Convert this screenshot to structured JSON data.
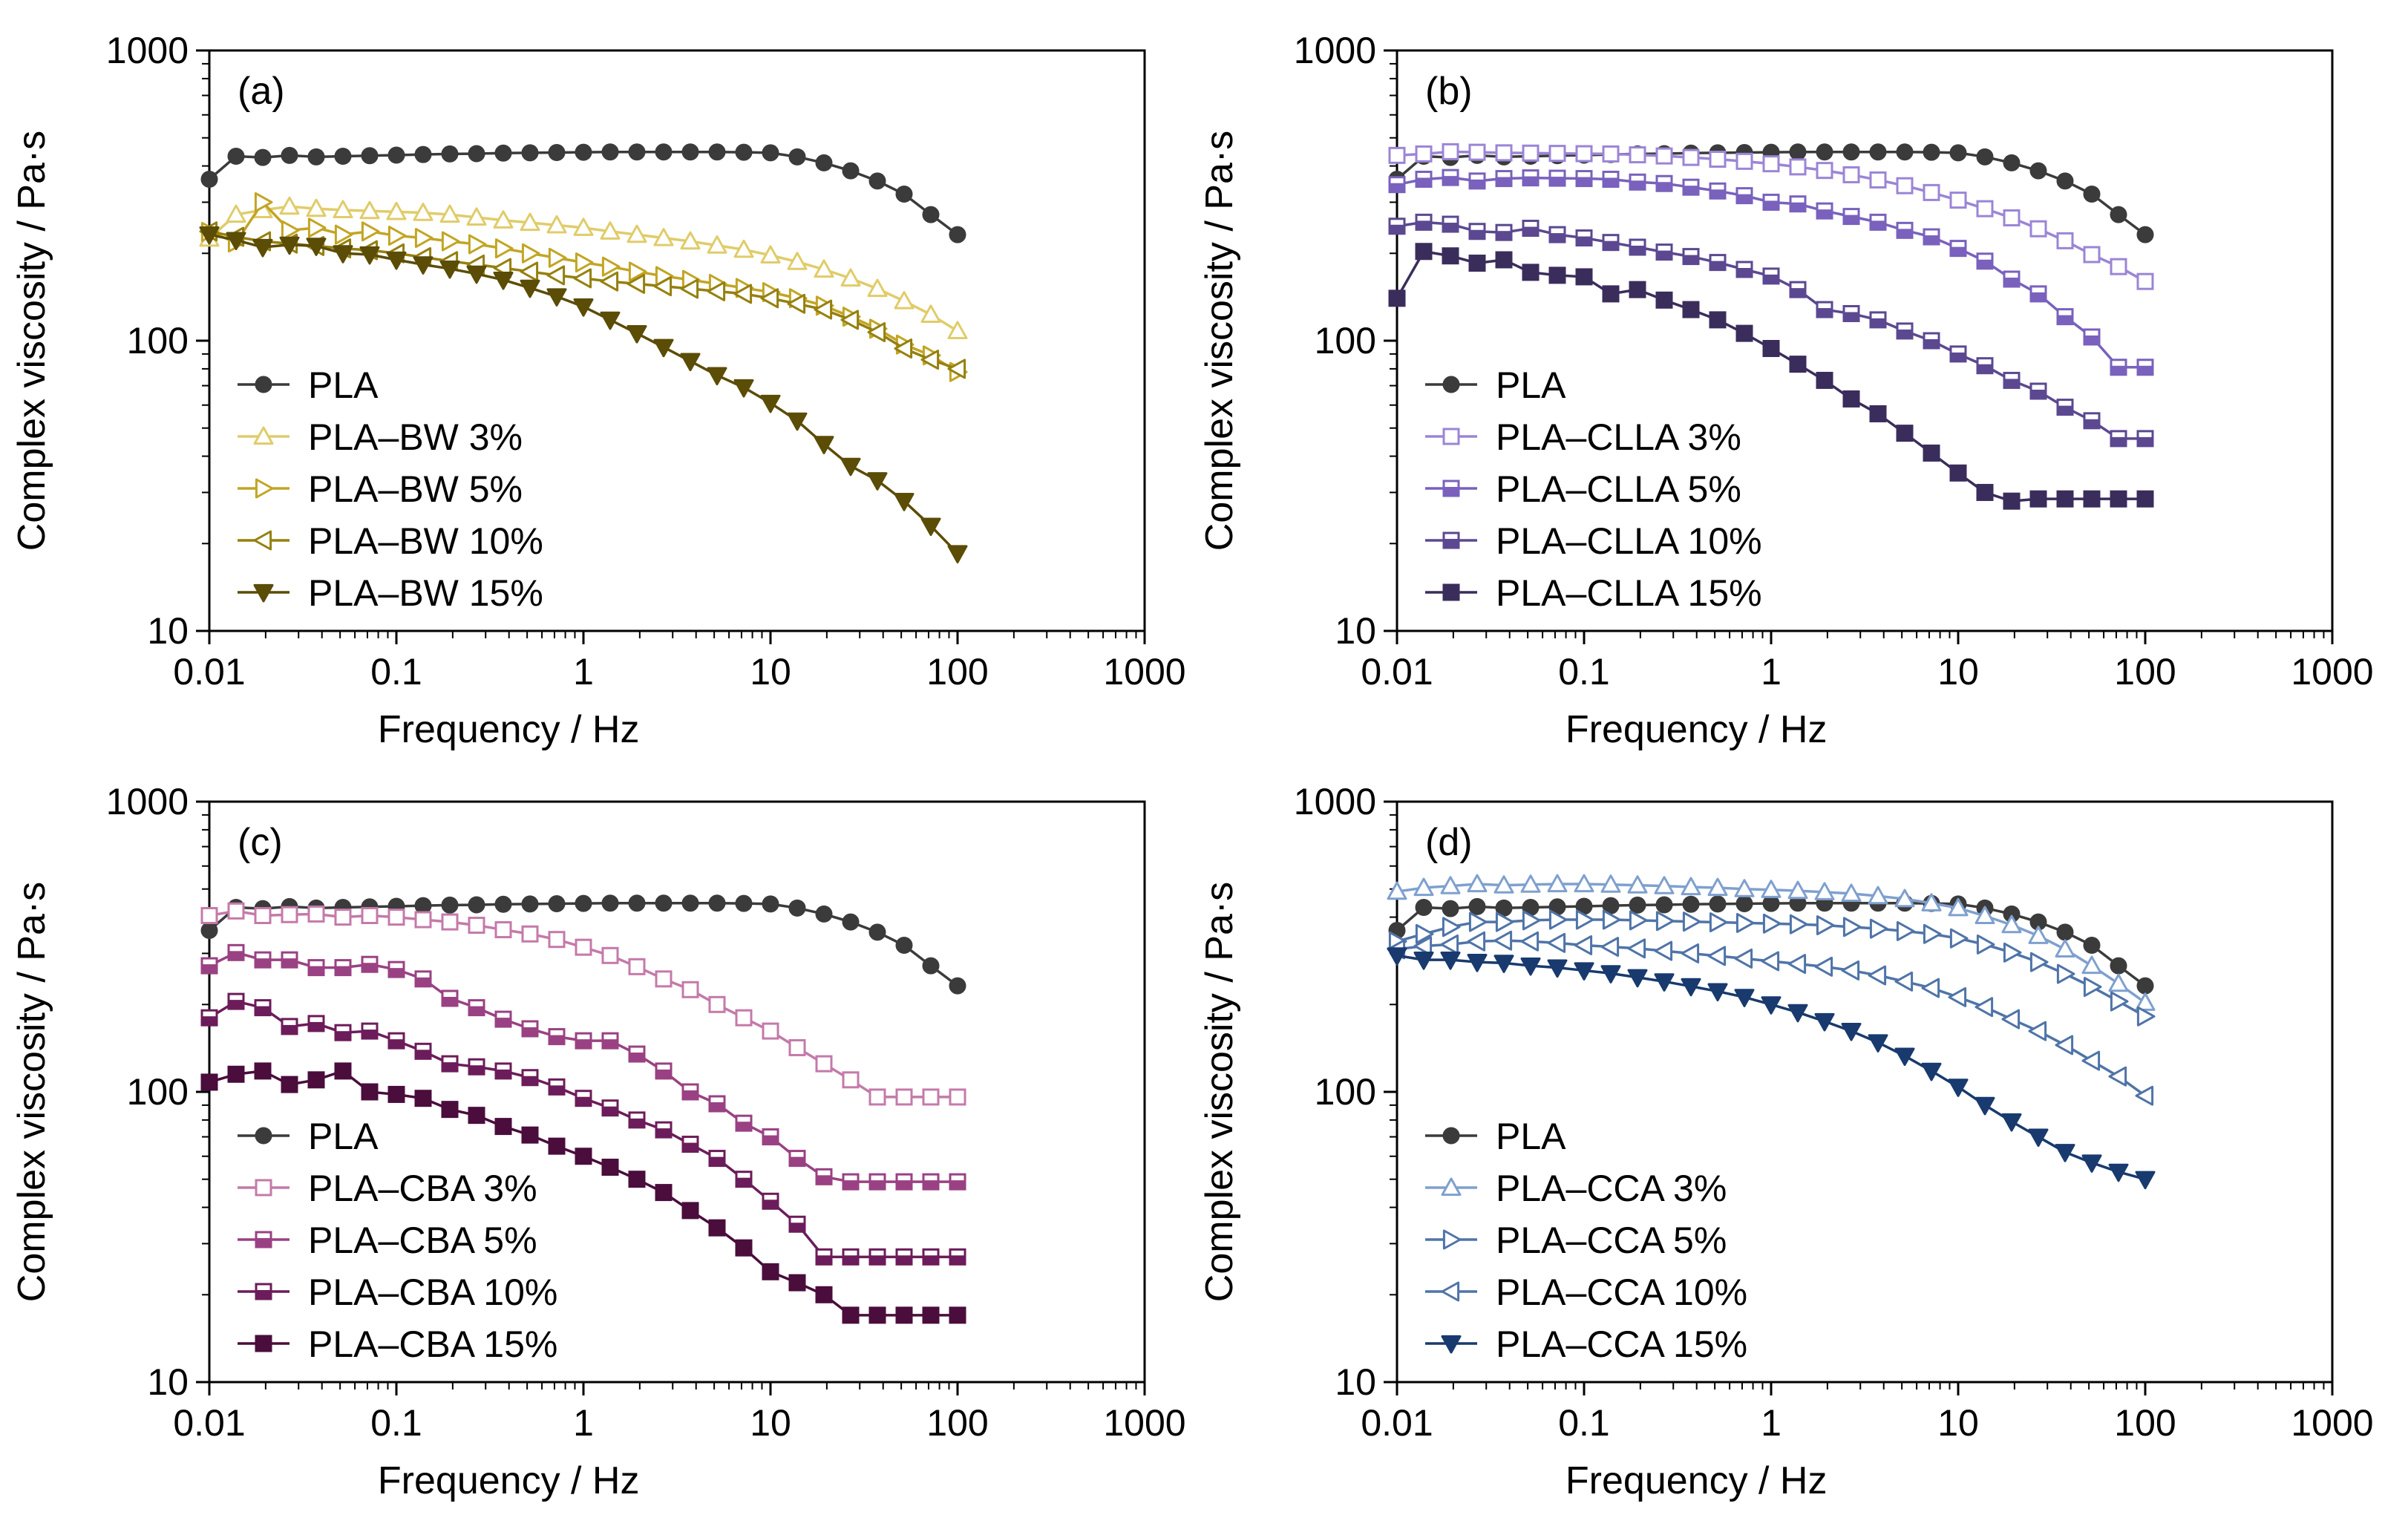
{
  "chart_data": [
    {
      "type": "line",
      "panel_label": "(a)",
      "xscale": "log",
      "yscale": "log",
      "xlim": [
        0.01,
        1000
      ],
      "ylim": [
        10,
        1000
      ],
      "xlabel": "Frequency / Hz",
      "ylabel": "Complex viscosity / Pa·s",
      "x_ticks": [
        "0.01",
        "0.1",
        "1",
        "10",
        "100",
        "1000"
      ],
      "y_ticks": [
        "10",
        "100",
        "1000"
      ],
      "legend_position": "bottom-left",
      "series": [
        {
          "name": "PLA",
          "color": "#3b3b3b",
          "marker": "circle",
          "fill": true,
          "values": [
            360,
            432,
            428,
            435,
            430,
            432,
            434,
            436,
            438,
            440,
            441,
            443,
            444,
            445,
            446,
            447,
            447,
            447,
            447,
            447,
            446,
            444,
            430,
            410,
            385,
            355,
            320,
            272,
            232
          ]
        },
        {
          "name": "PLA–BW 3%",
          "color": "#e0cc6a",
          "marker": "triangle-up",
          "fill": false,
          "values": [
            225,
            272,
            282,
            290,
            285,
            282,
            280,
            278,
            276,
            272,
            266,
            260,
            255,
            250,
            245,
            238,
            232,
            226,
            220,
            213,
            206,
            197,
            187,
            176,
            164,
            151,
            137,
            123,
            108
          ]
        },
        {
          "name": "PLA–BW 5%",
          "color": "#c2a524",
          "marker": "triangle-right",
          "fill": false,
          "values": [
            237,
            218,
            300,
            240,
            245,
            232,
            238,
            230,
            226,
            220,
            215,
            208,
            200,
            193,
            186,
            180,
            173,
            167,
            162,
            157,
            152,
            147,
            140,
            132,
            121,
            110,
            97,
            89,
            78
          ]
        },
        {
          "name": "PLA–BW 10%",
          "color": "#95800e",
          "marker": "triangle-left",
          "fill": false,
          "values": [
            238,
            228,
            220,
            216,
            212,
            208,
            205,
            200,
            194,
            188,
            183,
            178,
            173,
            168,
            164,
            160,
            157,
            154,
            151,
            148,
            145,
            140,
            134,
            128,
            118,
            107,
            94,
            86,
            80
          ]
        },
        {
          "name": "PLA–BW 15%",
          "color": "#5b4c06",
          "marker": "triangle-down",
          "fill": true,
          "values": [
            232,
            222,
            210,
            214,
            212,
            200,
            198,
            190,
            183,
            177,
            170,
            162,
            152,
            142,
            131,
            118,
            106,
            95,
            85,
            76,
            69,
            61,
            53,
            44,
            37,
            33,
            28,
            23,
            18.5
          ]
        }
      ]
    },
    {
      "type": "line",
      "panel_label": "(b)",
      "xscale": "log",
      "yscale": "log",
      "xlim": [
        0.01,
        1000
      ],
      "ylim": [
        10,
        1000
      ],
      "xlabel": "Frequency / Hz",
      "ylabel": "Complex viscosity / Pa·s",
      "x_ticks": [
        "0.01",
        "0.1",
        "1",
        "10",
        "100",
        "1000"
      ],
      "y_ticks": [
        "10",
        "100",
        "1000"
      ],
      "legend_position": "bottom-left",
      "series": [
        {
          "name": "PLA",
          "color": "#3b3b3b",
          "marker": "circle",
          "fill": true,
          "values": [
            360,
            432,
            428,
            435,
            430,
            432,
            434,
            436,
            438,
            440,
            441,
            443,
            444,
            445,
            446,
            447,
            447,
            447,
            447,
            447,
            446,
            444,
            430,
            410,
            385,
            355,
            320,
            272,
            232
          ]
        },
        {
          "name": "PLA–CLLA 3%",
          "color": "#9b85d6",
          "marker": "square",
          "fill": false,
          "values": [
            435,
            440,
            448,
            446,
            444,
            443,
            442,
            441,
            440,
            437,
            433,
            428,
            422,
            415,
            407,
            397,
            386,
            373,
            358,
            342,
            324,
            305,
            285,
            265,
            243,
            221,
            198,
            180,
            160
          ]
        },
        {
          "name": "PLA–CLLA 5%",
          "color": "#7961bd",
          "marker": "square-half",
          "fill": false,
          "values": [
            345,
            360,
            365,
            355,
            362,
            364,
            363,
            362,
            360,
            352,
            348,
            338,
            328,
            316,
            300,
            296,
            280,
            268,
            256,
            240,
            228,
            208,
            188,
            163,
            145,
            121,
            103,
            81,
            81
          ]
        },
        {
          "name": "PLA–CLLA 10%",
          "color": "#5b4891",
          "marker": "square-half",
          "fill": false,
          "values": [
            248,
            256,
            252,
            238,
            236,
            244,
            232,
            226,
            218,
            210,
            202,
            195,
            186,
            176,
            167,
            150,
            128,
            124,
            118,
            108,
            100,
            90,
            82,
            73,
            67,
            59,
            53,
            46,
            46
          ]
        },
        {
          "name": "PLA–CLLA 15%",
          "color": "#3a2d5c",
          "marker": "square",
          "fill": true,
          "values": [
            140,
            203,
            196,
            185,
            190,
            172,
            168,
            166,
            145,
            150,
            138,
            128,
            118,
            106,
            94,
            83,
            73,
            63,
            56,
            48,
            41,
            35,
            30,
            28,
            28.5,
            28.5,
            28.5,
            28.5,
            28.5
          ]
        }
      ]
    },
    {
      "type": "line",
      "panel_label": "(c)",
      "xscale": "log",
      "yscale": "log",
      "xlim": [
        0.01,
        1000
      ],
      "ylim": [
        10,
        1000
      ],
      "xlabel": "Frequency / Hz",
      "ylabel": "Complex viscosity / Pa·s",
      "x_ticks": [
        "0.01",
        "0.1",
        "1",
        "10",
        "100",
        "1000"
      ],
      "y_ticks": [
        "10",
        "100",
        "1000"
      ],
      "legend_position": "bottom-left",
      "series": [
        {
          "name": "PLA",
          "color": "#3b3b3b",
          "marker": "circle",
          "fill": true,
          "values": [
            360,
            432,
            428,
            435,
            430,
            432,
            434,
            436,
            438,
            440,
            441,
            443,
            444,
            445,
            446,
            447,
            447,
            447,
            447,
            447,
            446,
            444,
            430,
            410,
            385,
            355,
            320,
            272,
            232
          ]
        },
        {
          "name": "PLA–CBA 3%",
          "color": "#c47aa9",
          "marker": "square",
          "fill": false,
          "values": [
            405,
            420,
            405,
            408,
            410,
            400,
            405,
            400,
            392,
            385,
            375,
            362,
            350,
            335,
            315,
            295,
            270,
            245,
            225,
            200,
            180,
            162,
            142,
            125,
            110,
            96,
            96,
            96,
            96
          ]
        },
        {
          "name": "PLA–CBA 5%",
          "color": "#9a4183",
          "marker": "square-half",
          "fill": false,
          "values": [
            272,
            302,
            285,
            285,
            268,
            268,
            275,
            264,
            245,
            210,
            195,
            178,
            165,
            155,
            150,
            150,
            135,
            118,
            100,
            91,
            78,
            70,
            59,
            51,
            49,
            49,
            49,
            49,
            49
          ]
        },
        {
          "name": "PLA–CBA 10%",
          "color": "#6c1c5a",
          "marker": "square-half",
          "fill": false,
          "values": [
            180,
            205,
            195,
            168,
            172,
            160,
            162,
            150,
            138,
            125,
            122,
            118,
            112,
            104,
            95,
            88,
            80,
            74,
            66,
            59,
            50,
            42,
            35,
            27,
            27,
            27,
            27,
            27,
            27
          ]
        },
        {
          "name": "PLA–CBA 15%",
          "color": "#4a0d3c",
          "marker": "square",
          "fill": true,
          "values": [
            108,
            115,
            118,
            106,
            110,
            118,
            100,
            98,
            95,
            87,
            83,
            76,
            71,
            65,
            60,
            55,
            50,
            45,
            39,
            34,
            29,
            24,
            22,
            20,
            17,
            17,
            17,
            17,
            17
          ]
        }
      ]
    },
    {
      "type": "line",
      "panel_label": "(d)",
      "xscale": "log",
      "yscale": "log",
      "xlim": [
        0.01,
        1000
      ],
      "ylim": [
        10,
        1000
      ],
      "xlabel": "Frequency / Hz",
      "ylabel": "Complex viscosity / Pa·s",
      "x_ticks": [
        "0.01",
        "0.1",
        "1",
        "10",
        "100",
        "1000"
      ],
      "y_ticks": [
        "10",
        "100",
        "1000"
      ],
      "legend_position": "bottom-left",
      "series": [
        {
          "name": "PLA",
          "color": "#3b3b3b",
          "marker": "circle",
          "fill": true,
          "values": [
            360,
            432,
            428,
            435,
            430,
            432,
            434,
            436,
            438,
            440,
            441,
            443,
            444,
            445,
            446,
            447,
            447,
            447,
            447,
            447,
            446,
            444,
            430,
            410,
            385,
            355,
            320,
            272,
            232
          ]
        },
        {
          "name": "PLA–CCA 3%",
          "color": "#7fa0cf",
          "marker": "triangle-up",
          "fill": false,
          "values": [
            490,
            505,
            512,
            520,
            515,
            518,
            520,
            520,
            518,
            515,
            512,
            508,
            505,
            500,
            497,
            493,
            488,
            482,
            473,
            462,
            447,
            430,
            404,
            376,
            345,
            310,
            272,
            236,
            203
          ]
        },
        {
          "name": "PLA–CCA 5%",
          "color": "#4f74a8",
          "marker": "triangle-right",
          "fill": false,
          "values": [
            330,
            350,
            370,
            385,
            385,
            390,
            392,
            392,
            392,
            390,
            388,
            386,
            384,
            382,
            380,
            378,
            375,
            370,
            365,
            358,
            350,
            338,
            322,
            302,
            280,
            255,
            230,
            205,
            182
          ]
        },
        {
          "name": "PLA–CCA 10%",
          "color": "#4f74a8",
          "marker": "triangle-left",
          "fill": false,
          "values": [
            310,
            318,
            322,
            330,
            332,
            330,
            326,
            320,
            316,
            312,
            306,
            300,
            294,
            288,
            282,
            276,
            270,
            262,
            252,
            240,
            228,
            212,
            196,
            178,
            162,
            145,
            128,
            113,
            97
          ]
        },
        {
          "name": "PLA–CCA 15%",
          "color": "#193a6e",
          "marker": "triangle-down",
          "fill": true,
          "values": [
            295,
            285,
            285,
            280,
            278,
            272,
            268,
            262,
            256,
            248,
            240,
            231,
            222,
            212,
            200,
            188,
            175,
            162,
            148,
            133,
            118,
            104,
            90,
            79,
            70,
            62,
            57,
            53,
            50
          ]
        }
      ]
    }
  ]
}
